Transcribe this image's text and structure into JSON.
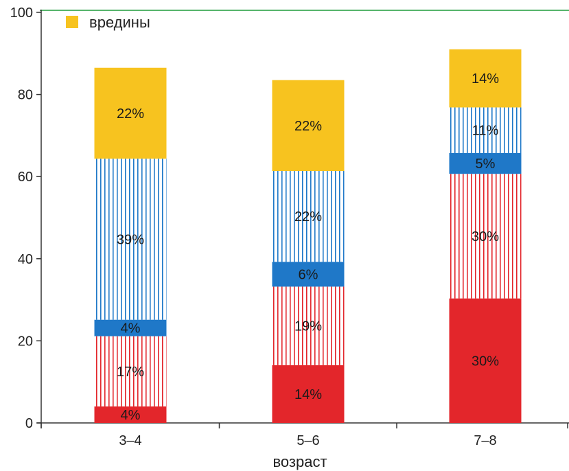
{
  "chart_data": {
    "type": "bar",
    "stacked": true,
    "categories": [
      "3–4",
      "5–6",
      "7–8"
    ],
    "series": [
      {
        "name": "",
        "color": "#e3262b",
        "pattern": "solid",
        "values": [
          4,
          14,
          30
        ],
        "labels": [
          "4%",
          "14%",
          "30%"
        ]
      },
      {
        "name": "",
        "color": "#e3262b",
        "pattern": "vertical-stripes",
        "values": [
          17,
          19,
          30
        ],
        "labels": [
          "17%",
          "19%",
          "30%"
        ]
      },
      {
        "name": "",
        "color": "#1f78c8",
        "pattern": "solid",
        "values": [
          4,
          6,
          5
        ],
        "labels": [
          "4%",
          "6%",
          "5%"
        ]
      },
      {
        "name": "",
        "color": "#1f78c8",
        "pattern": "vertical-stripes",
        "values": [
          39,
          22,
          11
        ],
        "labels": [
          "39%",
          "22%",
          "11%"
        ]
      },
      {
        "name": "вредины",
        "color": "#f7c31f",
        "pattern": "solid",
        "values": [
          22,
          22,
          14
        ],
        "labels": [
          "22%",
          "22%",
          "14%"
        ]
      }
    ],
    "totals": [
      86.5,
      83.5,
      91
    ],
    "xlabel": "возраст",
    "ylabel": "",
    "ylim": [
      0,
      100
    ],
    "yticks": [
      "0",
      "20",
      "40",
      "60",
      "80",
      "100"
    ],
    "legend": {
      "entries": [
        "вредины"
      ],
      "placement": "top-left"
    },
    "grid": false
  },
  "frame_color": "#1e9b3a"
}
